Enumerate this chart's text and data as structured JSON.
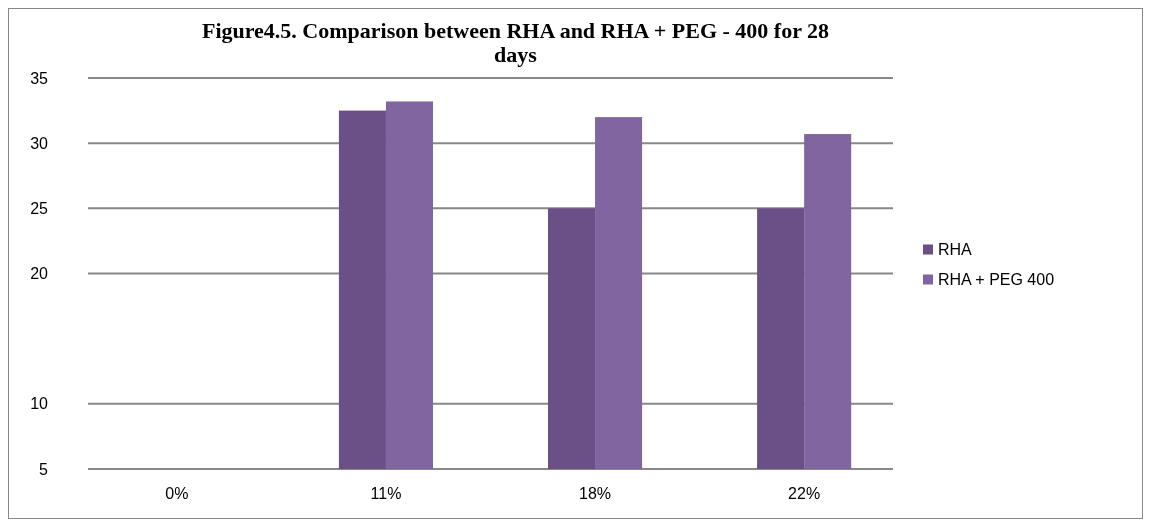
{
  "chart_data": {
    "type": "bar",
    "title": "Figure4.5. Comparison between RHA and RHA + PEG - 400 for 28 days",
    "categories": [
      "0%",
      "11%",
      "18%",
      "22%"
    ],
    "series": [
      {
        "name": "RHA",
        "color": "#6a5087",
        "values": [
          null,
          32.5,
          25,
          25
        ]
      },
      {
        "name": "RHA + PEG 400",
        "color": "#8165a0",
        "values": [
          null,
          33.2,
          32,
          30.7
        ]
      }
    ],
    "ylim": [
      5,
      35
    ],
    "yticks": [
      35,
      30,
      25,
      20,
      10,
      5
    ],
    "grid": "y",
    "legend": "right"
  }
}
